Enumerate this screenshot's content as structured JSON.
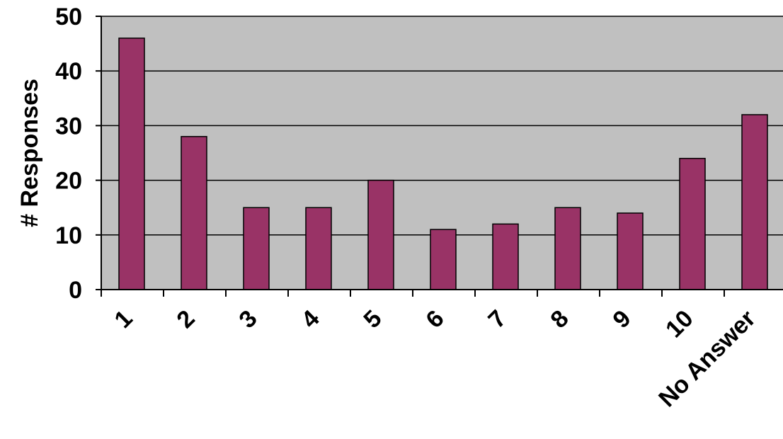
{
  "colors": {
    "bar_fill": "#993366",
    "plot_background": "#C0C0C0",
    "gridline": "#000000",
    "axis": "#000000"
  },
  "chart_data": {
    "type": "bar",
    "title": "",
    "xlabel": "",
    "ylabel": "# Responses",
    "categories": [
      "1",
      "2",
      "3",
      "4",
      "5",
      "6",
      "7",
      "8",
      "9",
      "10",
      "No Answer"
    ],
    "values": [
      46,
      28,
      15,
      15,
      20,
      11,
      12,
      15,
      14,
      24,
      32
    ],
    "ylim": [
      0,
      50
    ],
    "yticks": [
      "0",
      "10",
      "20",
      "30",
      "40",
      "50"
    ],
    "grid": true,
    "legend": "none"
  }
}
